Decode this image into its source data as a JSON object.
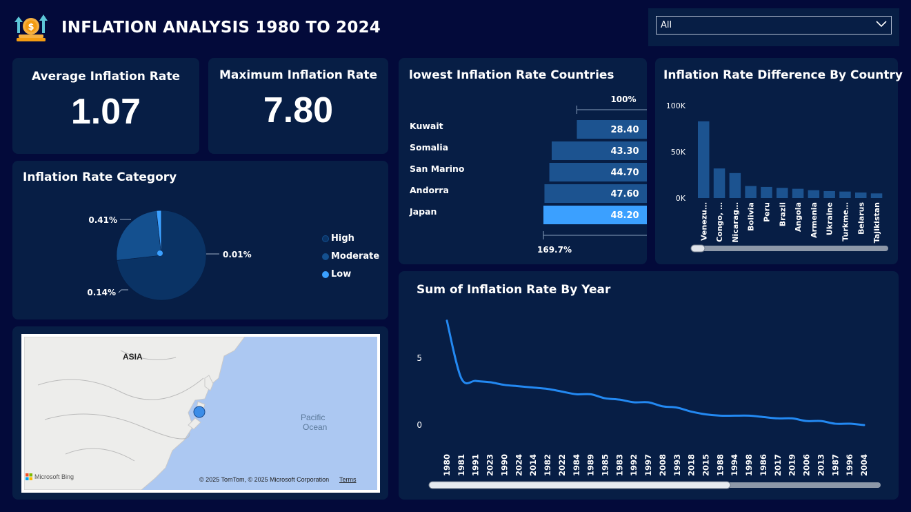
{
  "header": {
    "title": "INFLATION ANALYSIS 1980 TO 2024",
    "logo_icon": "coin-growth-icon"
  },
  "slicer": {
    "value": "All",
    "icon": "chevron-down-icon"
  },
  "kpis": {
    "average": {
      "label": "Average Inflation Rate",
      "value": "1.07"
    },
    "maximum": {
      "label": "Maximum Inflation Rate",
      "value": "7.80"
    }
  },
  "colors": {
    "background": "#030a3a",
    "card": "#071e45",
    "bar_dark": "#1c5390",
    "bar_highlight": "#3ba0ff",
    "line": "#2389f2",
    "pie_high": "#0a3365",
    "pie_moderate": "#14508f",
    "pie_low": "#3ba0ff"
  },
  "lowest": {
    "title": "lowest Inflation Rate Countries",
    "top_label": "100%",
    "bottom_label": "169.7%",
    "countries": [
      {
        "name": "Kuwait",
        "label": "28.40",
        "value": 28.4
      },
      {
        "name": "Somalia",
        "label": "43.30",
        "value": 43.3
      },
      {
        "name": "San Marino",
        "label": "44.70",
        "value": 44.7
      },
      {
        "name": "Andorra",
        "label": "47.60",
        "value": 47.6
      },
      {
        "name": "Japan",
        "label": "48.20",
        "value": 48.2
      }
    ]
  },
  "difference": {
    "title": "Inflation Rate Difference By Country",
    "y_ticks": [
      "100K",
      "50K",
      "0K"
    ],
    "categories": [
      "Venezu…",
      "Congo, …",
      "Nicarag…",
      "Bolivia",
      "Peru",
      "Brazil",
      "Angola",
      "Armenia",
      "Ukraine",
      "Turkme…",
      "Belarus",
      "Tajikistan"
    ]
  },
  "category": {
    "title": "Inflation Rate Category",
    "labels": [
      "0.41%",
      "0.01%",
      "0.14%"
    ],
    "legend": [
      "High",
      "Moderate",
      "Low"
    ]
  },
  "map": {
    "continent_label": "ASIA",
    "ocean_label_1": "Pacific",
    "ocean_label_2": "Ocean",
    "brand": "Microsoft Bing",
    "copyright": "© 2025 TomTom, © 2025 Microsoft Corporation",
    "terms": "Terms"
  },
  "yearly": {
    "title": "Sum of Inflation Rate By Year",
    "y_ticks": [
      "5",
      "0"
    ]
  },
  "chart_data": [
    {
      "type": "bar",
      "title": "lowest Inflation Rate Countries",
      "categories": [
        "Kuwait",
        "Somalia",
        "San Marino",
        "Andorra",
        "Japan"
      ],
      "values": [
        28.4,
        43.3,
        44.7,
        47.6,
        48.2
      ]
    },
    {
      "type": "bar",
      "title": "Inflation Rate Difference By Country",
      "categories": [
        "Venezu…",
        "Congo, …",
        "Nicarag…",
        "Bolivia",
        "Peru",
        "Brazil",
        "Angola",
        "Armenia",
        "Ukraine",
        "Turkme…",
        "Belarus",
        "Tajikistan"
      ],
      "values": [
        83000,
        32000,
        27000,
        13000,
        12000,
        11000,
        10000,
        8500,
        7500,
        7000,
        6000,
        5000
      ],
      "ylim": [
        0,
        100000
      ],
      "y_ticks": [
        "100K",
        "50K",
        "0K"
      ]
    },
    {
      "type": "pie",
      "title": "Inflation Rate Category",
      "categories": [
        "High",
        "Moderate",
        "Low"
      ],
      "labels": [
        "0.41%",
        "0.14%",
        "0.01%"
      ],
      "values": [
        0.41,
        0.14,
        0.01
      ]
    },
    {
      "type": "line",
      "title": "Sum of Inflation Rate By Year",
      "x": [
        "1980",
        "1981",
        "1991",
        "2023",
        "1990",
        "2024",
        "2014",
        "1982",
        "2022",
        "1984",
        "1989",
        "1985",
        "1983",
        "1992",
        "1997",
        "2008",
        "1993",
        "2018",
        "2015",
        "1988",
        "1994",
        "1998",
        "1986",
        "2017",
        "2019",
        "2006",
        "2013",
        "1987",
        "1996",
        "2004"
      ],
      "y": [
        7.8,
        3.5,
        3.3,
        3.2,
        3.0,
        2.9,
        2.8,
        2.7,
        2.5,
        2.3,
        2.3,
        2.0,
        1.9,
        1.7,
        1.7,
        1.4,
        1.3,
        1.0,
        0.8,
        0.7,
        0.7,
        0.7,
        0.6,
        0.5,
        0.5,
        0.3,
        0.3,
        0.1,
        0.1,
        0.0
      ],
      "ylim": [
        0,
        8
      ],
      "y_ticks": [
        "5",
        "0"
      ]
    }
  ]
}
